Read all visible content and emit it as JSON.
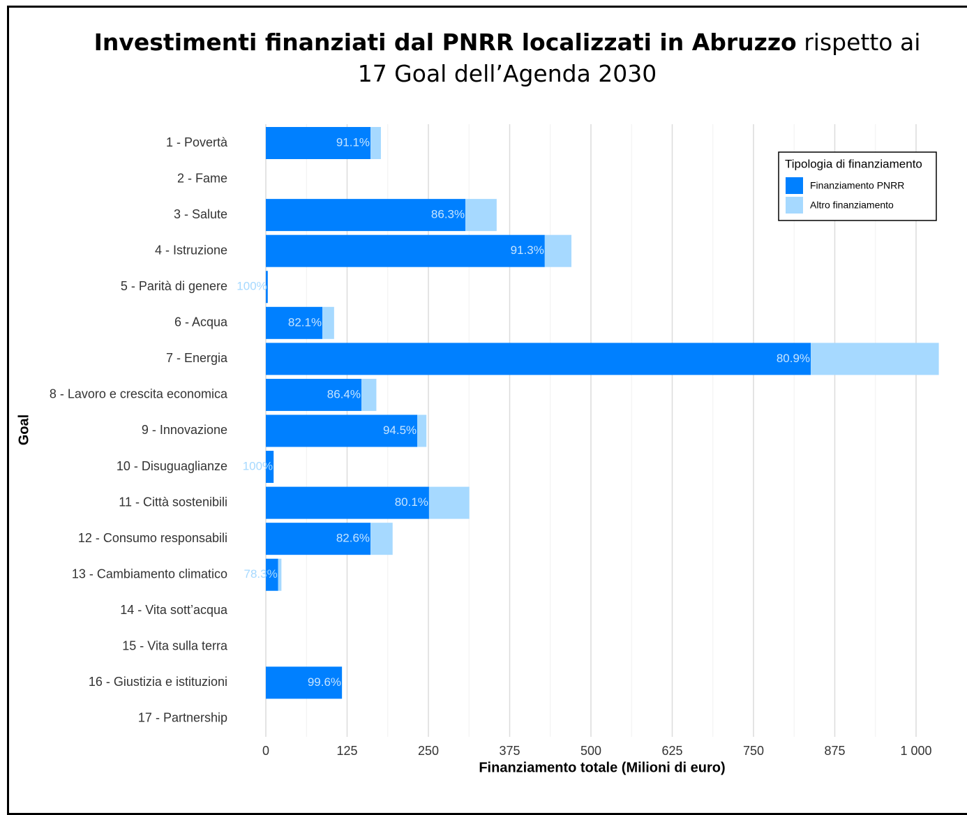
{
  "chart_data": {
    "type": "stacked-barh",
    "title_bold": "Investimenti finanziati dal PNRR localizzati in Abruzzo",
    "title_rest": "rispetto ai 17 Goal dell’Agenda 2030",
    "ylabel": "Goal",
    "xlabel": "Finanziamento totale (Milioni di euro)",
    "legend_title": "Tipologia di finanziamento",
    "legend_position": "top-right",
    "grid": true,
    "categories": [
      "1 - Povertà",
      "2 - Fame",
      "3 - Salute",
      "4 - Istruzione",
      "5 - Parità di genere",
      "6 - Acqua",
      "7 - Energia",
      "8 - Lavoro e crescita economica",
      "9 - Innovazione",
      "10 - Disuguaglianze",
      "11 - Città sostenibili",
      "12 - Consumo responsabili",
      "13 - Cambiamento climatico",
      "14 - Vita sott’acqua",
      "15 - Vita sulla terra",
      "16 - Giustizia e istituzioni",
      "17 - Partnership"
    ],
    "series": [
      {
        "name": "Finanziamento PNRR",
        "color": "#0080ff",
        "values": [
          161,
          null,
          307,
          429,
          3,
          87,
          838,
          147,
          233,
          12,
          251,
          161,
          19,
          null,
          null,
          117,
          null
        ]
      },
      {
        "name": "Altro finanziamento",
        "color": "#a6d9ff",
        "values": [
          16,
          null,
          48,
          41,
          0,
          18,
          197,
          23,
          14,
          0,
          62,
          34,
          5,
          null,
          null,
          0.5,
          null
        ]
      }
    ],
    "bar_labels": [
      "91.1%",
      null,
      "86.3%",
      "91.3%",
      "100%",
      "82.1%",
      "80.9%",
      "86.4%",
      "94.5%",
      "100%",
      "80.1%",
      "82.6%",
      "78.3%",
      null,
      null,
      "99.6%",
      null
    ],
    "xlim": [
      0,
      1035
    ],
    "xticks": [
      0,
      125,
      250,
      375,
      500,
      625,
      750,
      875,
      {
        "value": 1000,
        "label": "1 000"
      }
    ],
    "xminorticks": [
      62.5,
      187.5,
      312.5,
      437.5,
      562.5,
      687.5,
      812.5,
      937.5
    ]
  }
}
